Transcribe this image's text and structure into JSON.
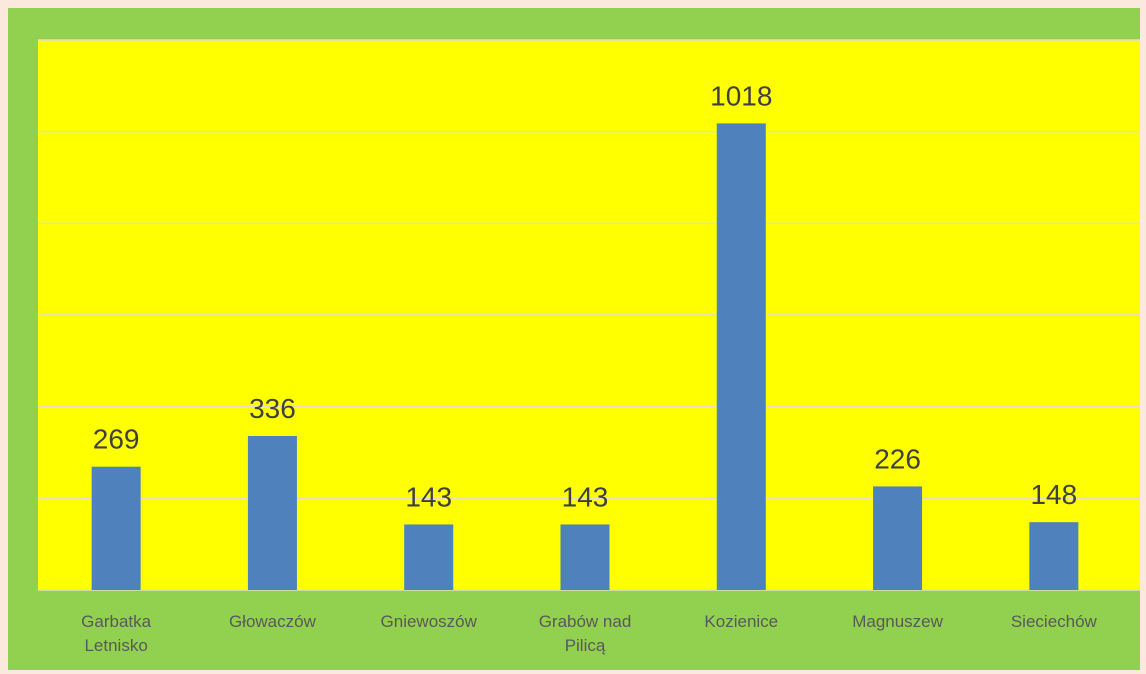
{
  "chart_data": {
    "type": "bar",
    "categories": [
      "Garbatka Letnisko",
      "Głowaczów",
      "Gniewoszów",
      "Grabów nad Pilicą",
      "Kozienice",
      "Magnuszew",
      "Sieciechów"
    ],
    "values": [
      269,
      336,
      143,
      143,
      1018,
      226,
      148
    ],
    "color": "#4f81bd",
    "ylim": [
      0,
      1200
    ],
    "yticks": [
      0,
      200,
      400,
      600,
      800,
      1000,
      1200
    ],
    "grid": true
  }
}
